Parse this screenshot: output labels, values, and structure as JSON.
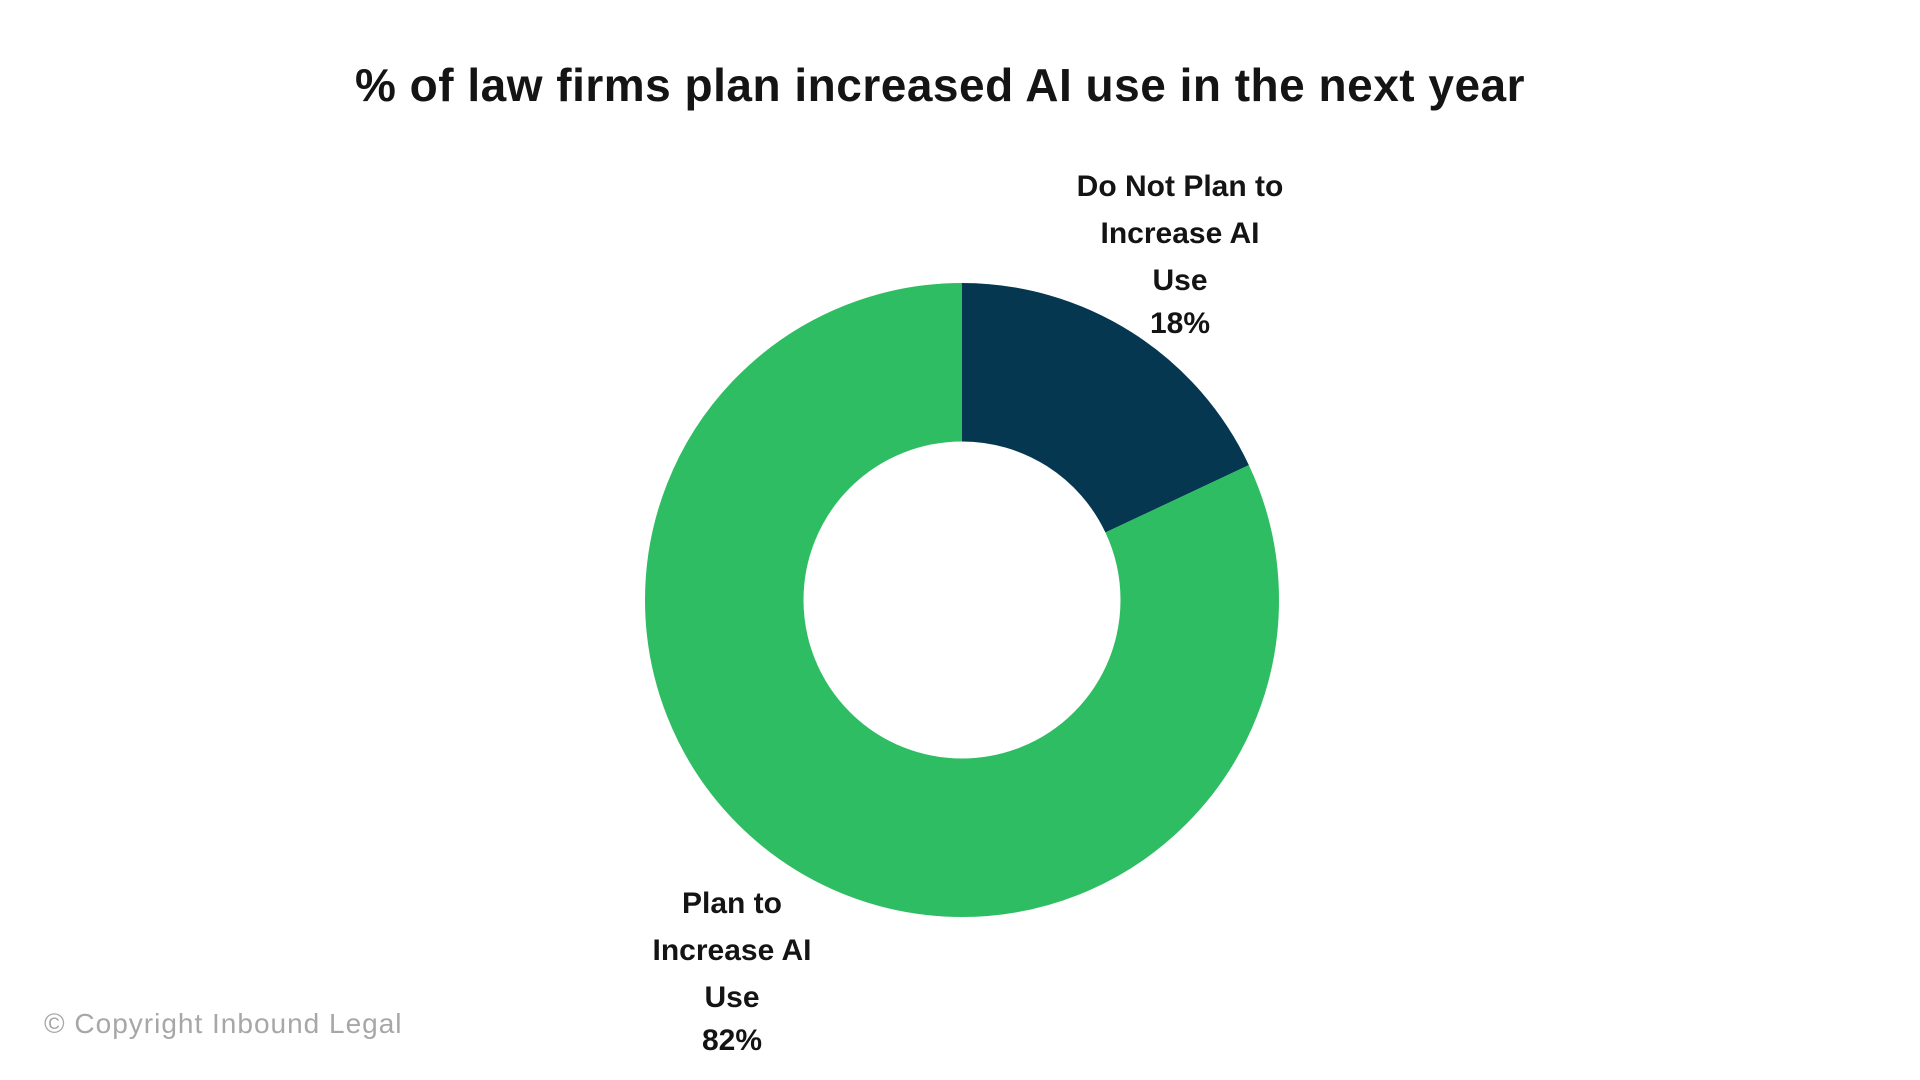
{
  "header": {
    "title": "% of law firms plan increased AI use in the next year"
  },
  "footer": {
    "copyright": "© Copyright Inbound Legal"
  },
  "colors": {
    "background": "#ffffff",
    "title_text": "#141414",
    "label_text": "#141414",
    "copyright_text": "#a7a7a7",
    "green": "#2ebd62",
    "navy": "#053850"
  },
  "chart_data": {
    "type": "pie",
    "donut": true,
    "inner_radius_ratio": 0.5,
    "start_angle_deg": 0,
    "direction": "clockwise",
    "title": "% of law firms plan increased AI use in the next year",
    "legend": "none",
    "slices": [
      {
        "label": "Do Not Plan to Increase AI Use",
        "label_lines": [
          "Do Not Plan to",
          "Increase AI",
          "Use"
        ],
        "value": 18,
        "pct_label": "18%",
        "color": "#053850"
      },
      {
        "label": "Plan to Increase AI Use",
        "label_lines": [
          "Plan to",
          "Increase AI",
          "Use"
        ],
        "value": 82,
        "pct_label": "82%",
        "color": "#2ebd62"
      }
    ]
  }
}
